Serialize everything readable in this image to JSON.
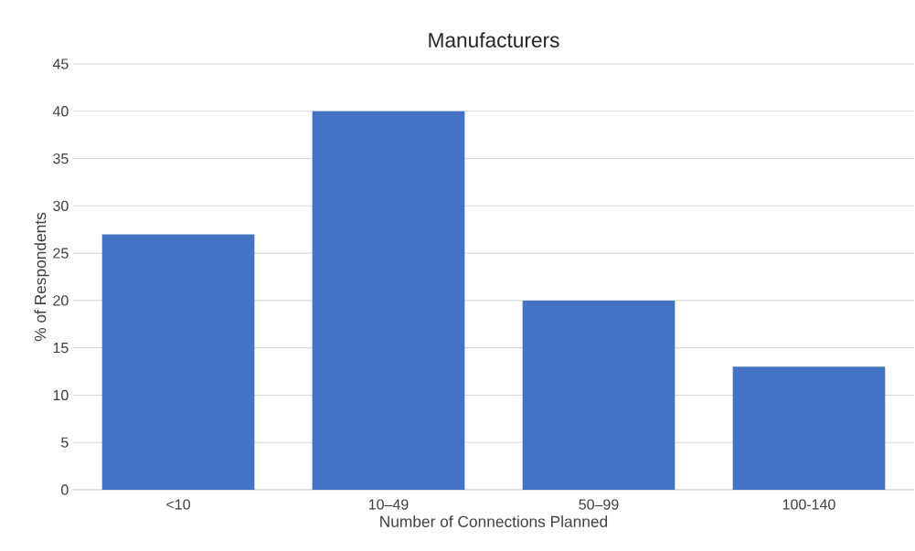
{
  "chart_data": {
    "type": "bar",
    "title": "Manufacturers",
    "xlabel": "Number of Connections Planned",
    "ylabel": "% of Respondents",
    "categories": [
      "<10",
      "10–49",
      "50–99",
      "100-140"
    ],
    "values": [
      27,
      40,
      20,
      13
    ],
    "color": "#4472c4",
    "ylim": [
      0,
      45
    ],
    "yticks": [
      0,
      5,
      10,
      15,
      20,
      25,
      30,
      35,
      40,
      45
    ],
    "grid": "y"
  }
}
